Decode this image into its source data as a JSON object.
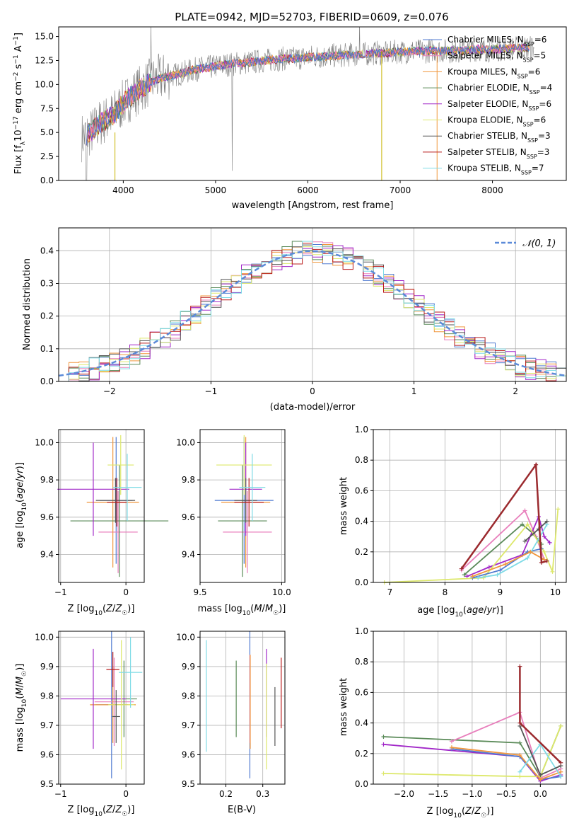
{
  "chart_data": [
    {
      "type": "line",
      "title": "PLATE=0942, MJD=52703, FIBERID=0609, z=0.076",
      "xlabel": "wavelength [Angstrom, rest frame]",
      "ylabel": "Flux [f_λ 10^{-17} erg cm^{-2} s^{-1} A^{-1}]",
      "xlim": [
        3300,
        8800
      ],
      "ylim": [
        0,
        16
      ],
      "xticks": [
        "4000",
        "5000",
        "6000",
        "7000",
        "8000"
      ],
      "yticks": [
        "0.0",
        "2.5",
        "5.0",
        "7.5",
        "10.0",
        "12.5",
        "15.0"
      ],
      "data_continuum": {
        "name": "data",
        "color": "#808080",
        "x": [
          3550,
          3650,
          3750,
          3850,
          3950,
          4050,
          4150,
          4250,
          4350,
          4450,
          4550,
          4650,
          4750,
          4850,
          4950,
          5050,
          5150,
          5250,
          5350,
          5450,
          5550,
          5650,
          5750,
          5850,
          5950,
          6050,
          6150,
          6250,
          6350,
          6450,
          6550,
          6650,
          6750,
          6850,
          6950,
          7050,
          7150,
          7250,
          7350,
          7450,
          7550,
          7650,
          7750,
          7850,
          7950,
          8050,
          8150,
          8250,
          8350,
          8450
        ],
        "y": [
          4.5,
          5.0,
          6.0,
          6.5,
          7.5,
          8.5,
          9.3,
          10.0,
          10.5,
          10.8,
          11.0,
          11.2,
          11.5,
          11.7,
          11.8,
          12.0,
          12.1,
          12.2,
          12.3,
          12.4,
          12.5,
          12.6,
          12.7,
          12.7,
          12.8,
          12.9,
          12.9,
          13.0,
          13.0,
          13.1,
          13.1,
          13.2,
          13.3,
          13.2,
          13.4,
          13.4,
          13.5,
          13.4,
          13.6,
          13.5,
          13.5,
          13.5,
          13.6,
          13.7,
          13.6,
          13.7,
          13.7,
          13.8,
          13.8,
          13.9
        ]
      },
      "legend": {
        "placement": "right",
        "entries": [
          {
            "label": "Chabrier MILES, N",
            "nssp": "6",
            "color": "#4f7ad0"
          },
          {
            "label": "Salpeter MILES, N",
            "nssp": "5",
            "color": "#e87fbc"
          },
          {
            "label": "Kroupa MILES, N",
            "nssp": "6",
            "color": "#f0963c"
          },
          {
            "label": "Chabrier ELODIE, N",
            "nssp": "4",
            "color": "#5a8a58"
          },
          {
            "label": "Salpeter ELODIE, N",
            "nssp": "6",
            "color": "#a127c8"
          },
          {
            "label": "Kroupa ELODIE, N",
            "nssp": "6",
            "color": "#dde86b"
          },
          {
            "label": "Chabrier STELIB, N",
            "nssp": "3",
            "color": "#555555"
          },
          {
            "label": "Salpeter STELIB, N",
            "nssp": "3",
            "color": "#b91c1c"
          },
          {
            "label": "Kroupa STELIB, N",
            "nssp": "7",
            "color": "#7fdbe6"
          }
        ]
      }
    },
    {
      "type": "line",
      "xlabel": "(data-model)/error",
      "ylabel": "Normed distribution",
      "xlim": [
        -2.5,
        2.5
      ],
      "ylim": [
        0,
        0.47
      ],
      "xticks": [
        "−2",
        "−1",
        "0",
        "1",
        "2"
      ],
      "yticks": [
        "0.0",
        "0.1",
        "0.2",
        "0.3",
        "0.4"
      ],
      "grid": true,
      "legend_label": "𝒩(0, 1)",
      "legend_placement": "top-right",
      "gaussian_color": "#5b8ad8"
    },
    {
      "type": "scatter",
      "xlabel": "Z [log₁₀(Z/Z☉)]",
      "ylabel": "age  [log₁₀(age/yr)]",
      "xlim": [
        -1.03,
        0.28
      ],
      "ylim": [
        9.25,
        10.07
      ],
      "xticks": [
        "−1",
        "0"
      ],
      "yticks": [
        "9.4",
        "9.6",
        "9.8",
        "10.0"
      ],
      "points": [
        {
          "x": -0.15,
          "y": 9.69,
          "xerr": 0.25,
          "yerr": 0.34,
          "color": "#4f7ad0"
        },
        {
          "x": -0.12,
          "y": 9.52,
          "xerr": 0.3,
          "yerr": 0.22,
          "color": "#e87fbc"
        },
        {
          "x": -0.2,
          "y": 9.68,
          "xerr": 0.4,
          "yerr": 0.35,
          "color": "#f0963c"
        },
        {
          "x": -0.1,
          "y": 9.58,
          "xerr": 0.75,
          "yerr": 0.3,
          "color": "#5a8a58"
        },
        {
          "x": -0.5,
          "y": 9.75,
          "xerr": 0.55,
          "yerr": 0.25,
          "color": "#a127c8"
        },
        {
          "x": -0.08,
          "y": 9.88,
          "xerr": 0.2,
          "yerr": 0.16,
          "color": "#dde86b"
        },
        {
          "x": -0.16,
          "y": 9.69,
          "xerr": 0.3,
          "yerr": 0.12,
          "color": "#555555"
        },
        {
          "x": -0.14,
          "y": 9.68,
          "xerr": 0.15,
          "yerr": 0.13,
          "color": "#b91c1c"
        },
        {
          "x": 0.02,
          "y": 9.76,
          "xerr": 0.22,
          "yerr": 0.18,
          "color": "#7fdbe6"
        }
      ]
    },
    {
      "type": "scatter",
      "xlabel": "mass [log₁₀(M/M☉)]",
      "xlim": [
        9.5,
        10.02
      ],
      "ylim": [
        9.25,
        10.07
      ],
      "xticks": [
        "9.5",
        "10.0"
      ],
      "yticks": [
        "9.4",
        "9.6",
        "9.8",
        "10.0"
      ],
      "points": [
        {
          "x": 9.77,
          "y": 9.69,
          "xerr": 0.18,
          "yerr": 0.34,
          "color": "#4f7ad0"
        },
        {
          "x": 9.79,
          "y": 9.52,
          "xerr": 0.15,
          "yerr": 0.22,
          "color": "#e87fbc"
        },
        {
          "x": 9.78,
          "y": 9.68,
          "xerr": 0.15,
          "yerr": 0.35,
          "color": "#f0963c"
        },
        {
          "x": 9.76,
          "y": 9.58,
          "xerr": 0.15,
          "yerr": 0.3,
          "color": "#5a8a58"
        },
        {
          "x": 9.78,
          "y": 9.75,
          "xerr": 0.1,
          "yerr": 0.25,
          "color": "#a127c8"
        },
        {
          "x": 9.77,
          "y": 9.88,
          "xerr": 0.17,
          "yerr": 0.16,
          "color": "#dde86b"
        },
        {
          "x": 9.78,
          "y": 9.69,
          "xerr": 0.07,
          "yerr": 0.12,
          "color": "#555555"
        },
        {
          "x": 9.8,
          "y": 9.68,
          "xerr": 0.09,
          "yerr": 0.13,
          "color": "#b91c1c"
        },
        {
          "x": 9.82,
          "y": 9.76,
          "xerr": 0.08,
          "yerr": 0.18,
          "color": "#7fdbe6"
        }
      ]
    },
    {
      "type": "line",
      "xlabel": "age  [log₁₀(age/yr)]",
      "ylabel": "mass weight",
      "xlim": [
        6.7,
        10.2
      ],
      "ylim": [
        0,
        1
      ],
      "xticks": [
        "7",
        "8",
        "9",
        "10"
      ],
      "yticks": [
        "0.0",
        "0.2",
        "0.4",
        "0.6",
        "0.8",
        "1.0"
      ],
      "series": [
        {
          "color": "#e87fbc",
          "x": [
            8.3,
            9.45,
            9.65,
            9.8
          ],
          "y": [
            0.08,
            0.47,
            0.3,
            0.15
          ]
        },
        {
          "color": "#5a8a58",
          "x": [
            8.35,
            9.4,
            9.6,
            9.75
          ],
          "y": [
            0.05,
            0.38,
            0.32,
            0.25
          ]
        },
        {
          "color": "#a127c8",
          "x": [
            8.4,
            8.8,
            9.4,
            9.7,
            9.8,
            9.9
          ],
          "y": [
            0.04,
            0.1,
            0.18,
            0.43,
            0.3,
            0.26
          ]
        },
        {
          "color": "#dde86b",
          "x": [
            6.9,
            8.7,
            9.5,
            9.8,
            9.95,
            10.05
          ],
          "y": [
            0.0,
            0.03,
            0.38,
            0.2,
            0.07,
            0.48
          ]
        },
        {
          "color": "#4f7ad0",
          "x": [
            8.5,
            9.0,
            9.5,
            9.75
          ],
          "y": [
            0.03,
            0.08,
            0.2,
            0.22
          ]
        },
        {
          "color": "#7fdbe6",
          "x": [
            8.6,
            8.95,
            9.5,
            9.85
          ],
          "y": [
            0.03,
            0.05,
            0.16,
            0.38
          ]
        },
        {
          "color": "#f0963c",
          "x": [
            8.5,
            9.1,
            9.55,
            9.8
          ],
          "y": [
            0.04,
            0.12,
            0.2,
            0.15
          ]
        },
        {
          "color": "#555555",
          "x": [
            9.45,
            9.7,
            9.85
          ],
          "y": [
            0.27,
            0.35,
            0.4
          ]
        },
        {
          "color": "#9b2a2e",
          "x": [
            8.3,
            9.65,
            9.75,
            9.85
          ],
          "y": [
            0.09,
            0.77,
            0.13,
            0.14
          ]
        }
      ]
    },
    {
      "type": "scatter",
      "xlabel": "Z [log₁₀(Z/Z☉)]",
      "ylabel": "mass [log₁₀(M/M☉)]",
      "xlim": [
        -1.03,
        0.28
      ],
      "ylim": [
        9.5,
        10.02
      ],
      "xticks": [
        "−1",
        "0"
      ],
      "yticks": [
        "9.5",
        "9.6",
        "9.7",
        "9.8",
        "9.9",
        "10.0"
      ],
      "points": [
        {
          "x": -0.22,
          "y": 9.77,
          "xerr": 0.25,
          "yerr": 0.25,
          "color": "#4f7ad0"
        },
        {
          "x": -0.18,
          "y": 9.78,
          "xerr": 0.3,
          "yerr": 0.15,
          "color": "#e87fbc"
        },
        {
          "x": -0.2,
          "y": 9.77,
          "xerr": 0.35,
          "yerr": 0.13,
          "color": "#f0963c"
        },
        {
          "x": -0.03,
          "y": 9.79,
          "xerr": 0.2,
          "yerr": 0.13,
          "color": "#5a8a58"
        },
        {
          "x": -0.5,
          "y": 9.79,
          "xerr": 0.5,
          "yerr": 0.17,
          "color": "#a127c8"
        },
        {
          "x": -0.07,
          "y": 9.77,
          "xerr": 0.2,
          "yerr": 0.22,
          "color": "#dde86b"
        },
        {
          "x": -0.15,
          "y": 9.73,
          "xerr": 0.06,
          "yerr": 0.09,
          "color": "#555555"
        },
        {
          "x": -0.2,
          "y": 9.89,
          "xerr": 0.1,
          "yerr": 0.06,
          "color": "#b91c1c"
        },
        {
          "x": 0.07,
          "y": 9.88,
          "xerr": 0.18,
          "yerr": 0.12,
          "color": "#7fdbe6"
        }
      ]
    },
    {
      "type": "scatter",
      "xlabel": "E(B-V)",
      "xlim": [
        0.13,
        0.36
      ],
      "ylim": [
        9.5,
        10.02
      ],
      "xticks": [
        "0.2",
        "0.3"
      ],
      "yticks": [
        "9.5",
        "9.6",
        "9.7",
        "9.8",
        "9.9",
        "10.0"
      ],
      "points": [
        {
          "x": 0.265,
          "y": 9.77,
          "yerr": 0.25,
          "color": "#4f7ad0"
        },
        {
          "x": 0.265,
          "y": 9.79,
          "yerr": 0.15,
          "color": "#e87fbc"
        },
        {
          "x": 0.266,
          "y": 9.78,
          "yerr": 0.16,
          "color": "#f0963c"
        },
        {
          "x": 0.228,
          "y": 9.79,
          "yerr": 0.13,
          "color": "#5a8a58"
        },
        {
          "x": 0.31,
          "y": 9.81,
          "yerr": 0.15,
          "color": "#a127c8"
        },
        {
          "x": 0.31,
          "y": 9.73,
          "yerr": 0.18,
          "color": "#dde86b"
        },
        {
          "x": 0.333,
          "y": 9.73,
          "yerr": 0.1,
          "color": "#555555"
        },
        {
          "x": 0.35,
          "y": 9.81,
          "yerr": 0.12,
          "color": "#b91c1c"
        },
        {
          "x": 0.147,
          "y": 9.8,
          "yerr": 0.19,
          "color": "#7fdbe6"
        }
      ]
    },
    {
      "type": "line",
      "xlabel": "Z [log₁₀(Z/Z☉)]",
      "ylabel": "mass weight",
      "xlim": [
        -2.45,
        0.38
      ],
      "ylim": [
        0,
        1
      ],
      "xticks": [
        "−2.0",
        "−1.5",
        "−1.0",
        "−0.5",
        "0.0"
      ],
      "yticks": [
        "0.0",
        "0.2",
        "0.4",
        "0.6",
        "0.8",
        "1.0"
      ],
      "series": [
        {
          "color": "#5a8a58",
          "x": [
            -2.3,
            -0.3,
            0.0,
            0.3
          ],
          "y": [
            0.31,
            0.27,
            0.05,
            0.38
          ]
        },
        {
          "color": "#a127c8",
          "x": [
            -2.3,
            -0.3,
            0.0,
            0.3
          ],
          "y": [
            0.26,
            0.18,
            0.02,
            0.06
          ]
        },
        {
          "color": "#e87fbc",
          "x": [
            -1.3,
            -0.3,
            0.0,
            0.3
          ],
          "y": [
            0.28,
            0.47,
            0.04,
            0.1
          ]
        },
        {
          "color": "#dde86b",
          "x": [
            -2.3,
            -0.3,
            0.0,
            0.3
          ],
          "y": [
            0.07,
            0.05,
            0.05,
            0.38
          ]
        },
        {
          "color": "#4f7ad0",
          "x": [
            -1.3,
            -0.3,
            0.0,
            0.3
          ],
          "y": [
            0.23,
            0.18,
            0.03,
            0.05
          ]
        },
        {
          "color": "#f0963c",
          "x": [
            -1.3,
            -0.3,
            0.0,
            0.3
          ],
          "y": [
            0.24,
            0.19,
            0.03,
            0.08
          ]
        },
        {
          "color": "#7fdbe6",
          "x": [
            -0.3,
            0.0,
            0.3
          ],
          "y": [
            0.08,
            0.26,
            0.05
          ]
        },
        {
          "color": "#555555",
          "x": [
            -0.3,
            0.0,
            0.3
          ],
          "y": [
            0.38,
            0.06,
            0.12
          ]
        },
        {
          "color": "#9b2a2e",
          "x": [
            -0.3,
            -0.3,
            0.3
          ],
          "y": [
            0.77,
            0.4,
            0.14
          ]
        }
      ]
    }
  ]
}
